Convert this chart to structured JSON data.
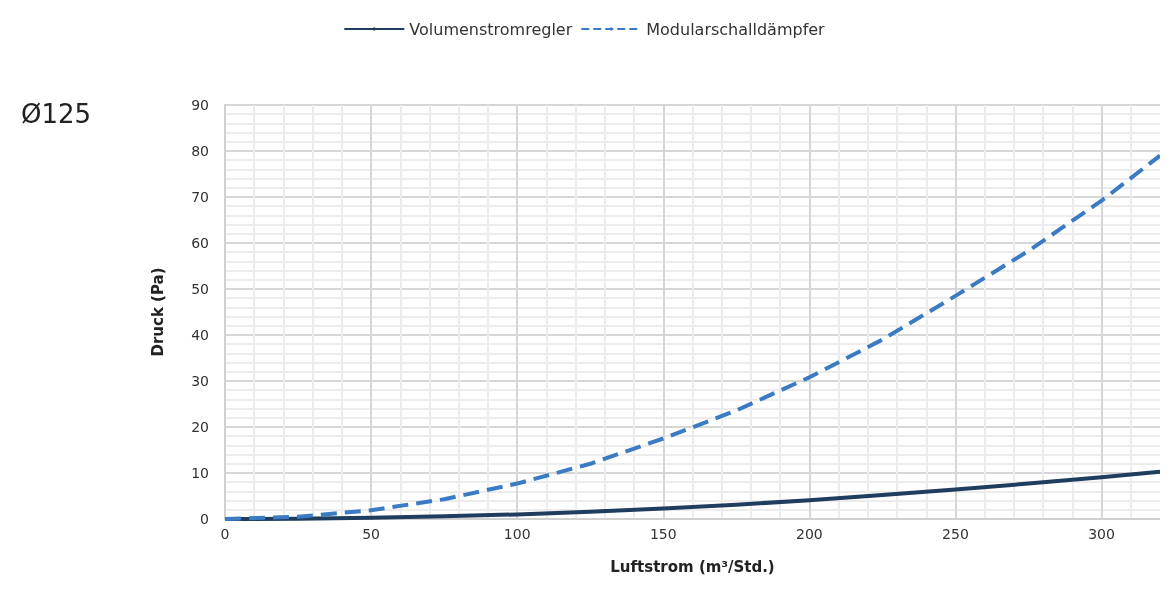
{
  "chart_data": {
    "type": "line",
    "title": "Ø125",
    "xlabel": "Luftstrom (m³/Std.)",
    "ylabel": "Druck (Pa)",
    "x": [
      0,
      25,
      50,
      75,
      100,
      125,
      150,
      175,
      200,
      225,
      250,
      275,
      300,
      320
    ],
    "series": [
      {
        "name": "Volumenstromregler",
        "color": "#1f3d5e",
        "line_style": "solid",
        "values": [
          0,
          0.06,
          0.25,
          0.6,
          1,
          1.6,
          2.3,
          3.1,
          4.1,
          5.2,
          6.4,
          7.7,
          9.1,
          10.3
        ]
      },
      {
        "name": "Modularschalldämpfer",
        "color": "#3a7bc4",
        "line_style": "dashed",
        "values": [
          0,
          0.5,
          1.9,
          4.3,
          7.7,
          12,
          17.5,
          23.6,
          30.8,
          39,
          48.5,
          58.3,
          69.2,
          79
        ]
      }
    ],
    "xlim": [
      0,
      320
    ],
    "xticks": [
      0,
      50,
      100,
      150,
      200,
      250,
      300
    ],
    "ylim": [
      0,
      90
    ],
    "yticks": [
      0,
      10,
      20,
      30,
      40,
      50,
      60,
      70,
      80,
      90
    ],
    "grid": true,
    "legend": "top",
    "marker": "none"
  }
}
